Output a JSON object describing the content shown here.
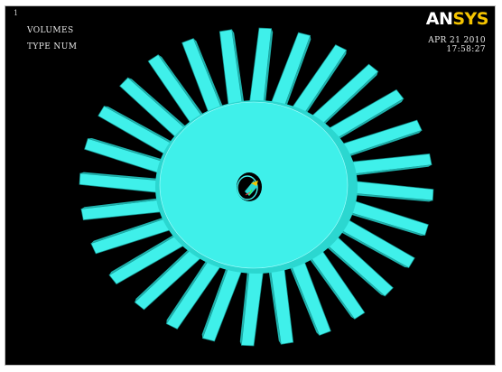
{
  "window": {
    "number": "1",
    "labels": [
      "VOLUMES",
      "TYPE NUM"
    ],
    "date": "APR 21 2010",
    "time": "17:58:27"
  },
  "logo": {
    "part1": "AN",
    "part2": "SYS",
    "colors": {
      "main": "#ffffff",
      "accent": "#f5c400"
    }
  },
  "model": {
    "description_color": "#33e6e0",
    "blade_count": 28,
    "background": "#000000"
  }
}
